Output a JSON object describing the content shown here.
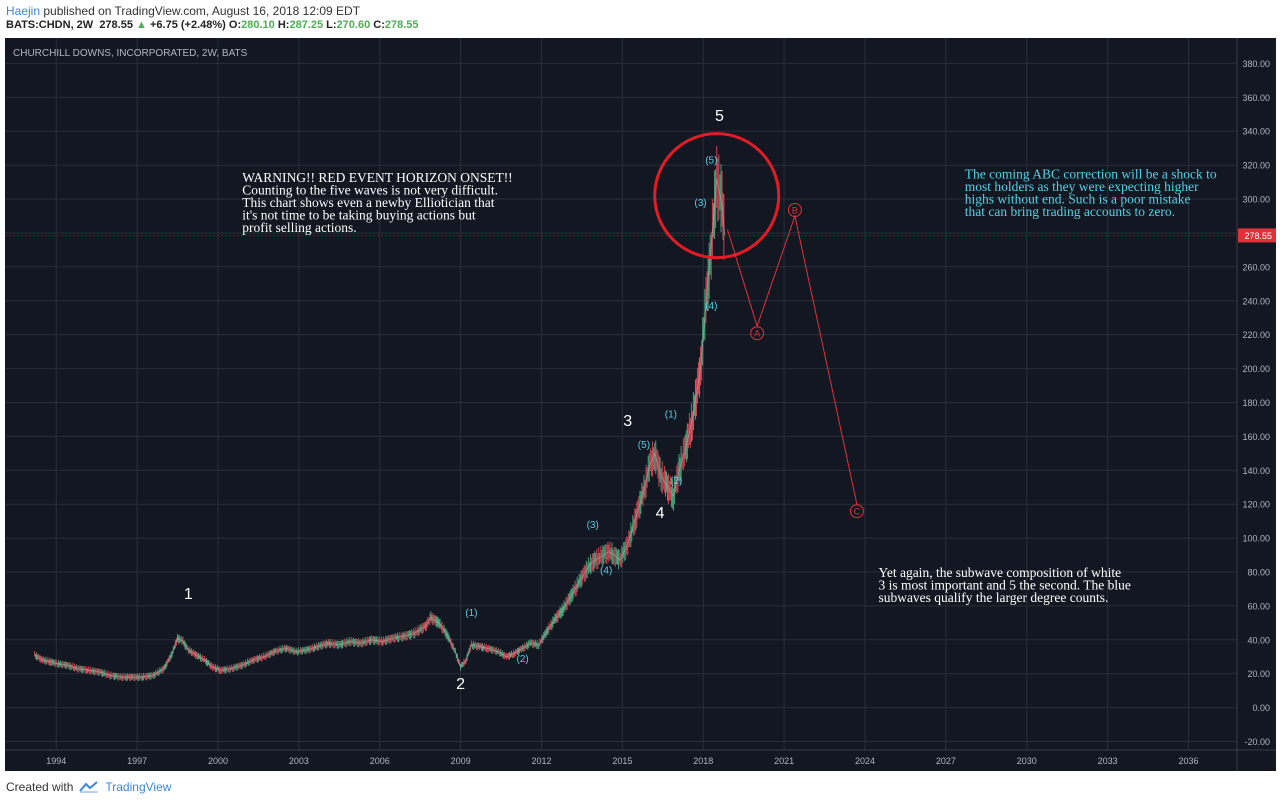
{
  "header": {
    "author": "Haejin",
    "published": "published on TradingView.com, August 16, 2018 12:09 EDT",
    "symbol": "BATS:CHDN, 2W",
    "last": "278.55",
    "change": "+6.75 (+2.48%)",
    "o_label": "O:",
    "o": "280.10",
    "h_label": "H:",
    "h": "287.25",
    "l_label": "L:",
    "l": "270.60",
    "c_label": "C:",
    "c": "278.55"
  },
  "footer": {
    "created_with": "Created with",
    "brand": "TradingView"
  },
  "colors": {
    "background": "#131722",
    "grid": "#2a2e39",
    "axis_text": "#b2b5be",
    "price": "#b7b7b7",
    "up_candle": "#53b987",
    "down_candle": "#eb4d5c",
    "wave_white": "#ffffff",
    "wave_cyan": "#4fd3e6",
    "projection_red": "#e0313a",
    "price_tag": "#e0313a"
  },
  "chart_data": {
    "type": "line",
    "title": "CHURCHILL DOWNS, INCORPORATED, 2W, BATS",
    "xlabel": "",
    "ylabel": "",
    "xlim": [
      1992.1,
      2037.8
    ],
    "ylim": [
      -25,
      395
    ],
    "x_ticks": [
      1994,
      1997,
      2000,
      2003,
      2006,
      2009,
      2012,
      2015,
      2018,
      2021,
      2024,
      2027,
      2030,
      2033,
      2036
    ],
    "y_ticks": [
      -20,
      0,
      20,
      40,
      60,
      80,
      100,
      120,
      140,
      160,
      180,
      200,
      220,
      240,
      260,
      280,
      300,
      320,
      340,
      360,
      380
    ],
    "y_tick_labels": [
      "-20.00",
      "0.00",
      "20.00",
      "40.00",
      "60.00",
      "80.00",
      "100.00",
      "120.00",
      "140.00",
      "160.00",
      "180.00",
      "200.00",
      "220.00",
      "240.00",
      "260.00",
      "280.00",
      "300.00",
      "320.00",
      "340.00",
      "360.00",
      "380.00"
    ],
    "last_price_label": "278.55",
    "last_price": 278.55,
    "grid": true,
    "series": [
      {
        "points": [
          [
            1993.2,
            31
          ],
          [
            1993.5,
            28
          ],
          [
            1993.8,
            27
          ],
          [
            1994.0,
            26
          ],
          [
            1994.4,
            25
          ],
          [
            1994.8,
            23
          ],
          [
            1995.2,
            22
          ],
          [
            1995.6,
            21
          ],
          [
            1996.0,
            19
          ],
          [
            1996.4,
            18
          ],
          [
            1996.8,
            18
          ],
          [
            1997.2,
            18
          ],
          [
            1997.6,
            19
          ],
          [
            1998.0,
            23
          ],
          [
            1998.3,
            32
          ],
          [
            1998.5,
            41
          ],
          [
            1998.7,
            39
          ],
          [
            1998.9,
            34
          ],
          [
            1999.2,
            31
          ],
          [
            1999.5,
            28
          ],
          [
            1999.8,
            24
          ],
          [
            2000.1,
            22
          ],
          [
            2000.5,
            23
          ],
          [
            2000.9,
            25
          ],
          [
            2001.3,
            28
          ],
          [
            2001.7,
            30
          ],
          [
            2002.1,
            33
          ],
          [
            2002.5,
            35
          ],
          [
            2002.9,
            33
          ],
          [
            2003.3,
            34
          ],
          [
            2003.7,
            36
          ],
          [
            2004.1,
            38
          ],
          [
            2004.5,
            37
          ],
          [
            2004.9,
            39
          ],
          [
            2005.3,
            38
          ],
          [
            2005.7,
            40
          ],
          [
            2006.1,
            39
          ],
          [
            2006.5,
            41
          ],
          [
            2006.9,
            42
          ],
          [
            2007.3,
            44
          ],
          [
            2007.7,
            48
          ],
          [
            2007.9,
            53
          ],
          [
            2008.2,
            50
          ],
          [
            2008.5,
            43
          ],
          [
            2008.8,
            33
          ],
          [
            2009.0,
            24
          ],
          [
            2009.2,
            28
          ],
          [
            2009.4,
            37
          ],
          [
            2009.7,
            36
          ],
          [
            2010.0,
            35
          ],
          [
            2010.4,
            33
          ],
          [
            2010.7,
            30
          ],
          [
            2011.0,
            32
          ],
          [
            2011.3,
            35
          ],
          [
            2011.6,
            38
          ],
          [
            2011.9,
            37
          ],
          [
            2012.2,
            45
          ],
          [
            2012.5,
            52
          ],
          [
            2012.8,
            58
          ],
          [
            2013.1,
            66
          ],
          [
            2013.4,
            74
          ],
          [
            2013.7,
            82
          ],
          [
            2013.9,
            86
          ],
          [
            2014.2,
            89
          ],
          [
            2014.5,
            92
          ],
          [
            2014.7,
            90
          ],
          [
            2014.9,
            87
          ],
          [
            2015.2,
            96
          ],
          [
            2015.5,
            112
          ],
          [
            2015.8,
            128
          ],
          [
            2016.0,
            142
          ],
          [
            2016.2,
            150
          ],
          [
            2016.4,
            138
          ],
          [
            2016.6,
            132
          ],
          [
            2016.9,
            125
          ],
          [
            2017.1,
            140
          ],
          [
            2017.3,
            150
          ],
          [
            2017.6,
            170
          ],
          [
            2017.9,
            200
          ],
          [
            2018.1,
            238
          ],
          [
            2018.3,
            272
          ],
          [
            2018.5,
            312
          ],
          [
            2018.7,
            296
          ],
          [
            2018.8,
            278.55
          ]
        ]
      }
    ],
    "annotations": {
      "white_waves": [
        {
          "label": "1",
          "x": 1998.9,
          "y": 64
        },
        {
          "label": "2",
          "x": 2009.0,
          "y": 11
        },
        {
          "label": "3",
          "x": 2015.2,
          "y": 166
        },
        {
          "label": "4",
          "x": 2016.4,
          "y": 112
        },
        {
          "label": "5",
          "x": 2018.6,
          "y": 346
        }
      ],
      "cyan_waves": [
        {
          "label": "(1)",
          "x": 2009.4,
          "y": 54
        },
        {
          "label": "(2)",
          "x": 2011.3,
          "y": 27
        },
        {
          "label": "(3)",
          "x": 2013.9,
          "y": 106
        },
        {
          "label": "(4)",
          "x": 2014.4,
          "y": 79
        },
        {
          "label": "(5)",
          "x": 2015.8,
          "y": 153
        },
        {
          "label": "(1)",
          "x": 2016.8,
          "y": 171
        },
        {
          "label": "(2)",
          "x": 2017.0,
          "y": 132
        },
        {
          "label": "(3)",
          "x": 2017.9,
          "y": 296
        },
        {
          "label": "(4)",
          "x": 2018.3,
          "y": 235
        },
        {
          "label": "(5)",
          "x": 2018.3,
          "y": 321
        }
      ],
      "projection": [
        {
          "label": "",
          "x": 2018.9,
          "y": 282
        },
        {
          "label": "A",
          "x": 2020.0,
          "y": 225
        },
        {
          "label": "B",
          "x": 2021.4,
          "y": 290
        },
        {
          "label": "C",
          "x": 2023.7,
          "y": 120
        }
      ],
      "circle": {
        "x": 2018.5,
        "y": 302
      },
      "notes": [
        {
          "lines": [
            "WARNING!! RED EVENT HORIZON ONSET!!",
            "Counting to the five waves is not very difficult.",
            "This chart shows even a newby Elliotician that",
            "it's not time to be taking buying actions but",
            "profit selling actions."
          ],
          "x": 2000.9,
          "y": 310,
          "color": "white"
        },
        {
          "lines": [
            "The coming ABC correction will be a shock to",
            "most holders as they were expecting higher",
            "highs without end. Such is a poor mistake",
            "that can bring trading accounts to zero."
          ],
          "x": 2027.7,
          "y": 312,
          "color": "cyan"
        },
        {
          "lines": [
            "Yet again, the subwave composition of white",
            "3 is most important and 5 the second. The blue",
            "subwaves qualify the larger degree counts."
          ],
          "x": 2024.5,
          "y": 77,
          "color": "white"
        }
      ]
    }
  }
}
